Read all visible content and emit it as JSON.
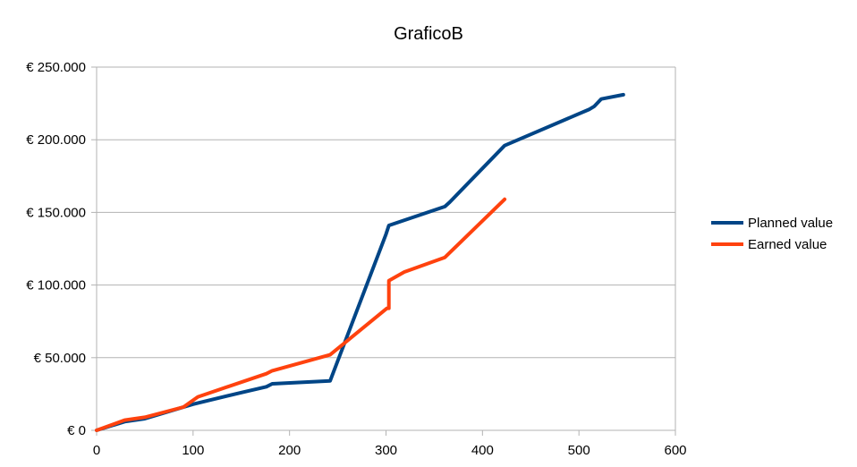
{
  "chart_data": {
    "type": "line",
    "title": "GraficoB",
    "xlabel": "",
    "ylabel": "",
    "xlim": [
      0,
      600
    ],
    "ylim": [
      0,
      250000
    ],
    "x_ticks": [
      0,
      100,
      200,
      300,
      400,
      500,
      600
    ],
    "y_ticks": [
      0,
      50000,
      100000,
      150000,
      200000,
      250000
    ],
    "x_tick_labels": [
      "0",
      "100",
      "200",
      "300",
      "400",
      "500",
      "600"
    ],
    "y_tick_labels": [
      "€ 0",
      "€ 50.000",
      "€ 100.000",
      "€ 150.000",
      "€ 200.000",
      "€ 250.000"
    ],
    "grid": "horizontal",
    "legend_position": "right",
    "series": [
      {
        "name": "Planned value",
        "color": "#004586",
        "points": [
          [
            0,
            0
          ],
          [
            29,
            6000
          ],
          [
            50,
            8000
          ],
          [
            100,
            18000
          ],
          [
            150,
            26000
          ],
          [
            176,
            30000
          ],
          [
            182,
            32000
          ],
          [
            242,
            34000
          ],
          [
            300,
            135000
          ],
          [
            303,
            141000
          ],
          [
            361,
            154000
          ],
          [
            366,
            157000
          ],
          [
            423,
            196000
          ],
          [
            511,
            221000
          ],
          [
            516,
            223000
          ],
          [
            523,
            228000
          ],
          [
            546,
            231000
          ]
        ]
      },
      {
        "name": "Earned value",
        "color": "#ff420e",
        "points": [
          [
            0,
            0
          ],
          [
            29,
            7000
          ],
          [
            50,
            9000
          ],
          [
            90,
            16000
          ],
          [
            105,
            23000
          ],
          [
            176,
            39000
          ],
          [
            182,
            41000
          ],
          [
            242,
            52000
          ],
          [
            301,
            84000
          ],
          [
            303,
            84000
          ],
          [
            303,
            103000
          ],
          [
            319,
            109000
          ],
          [
            361,
            119000
          ],
          [
            423,
            159000
          ]
        ]
      }
    ]
  }
}
